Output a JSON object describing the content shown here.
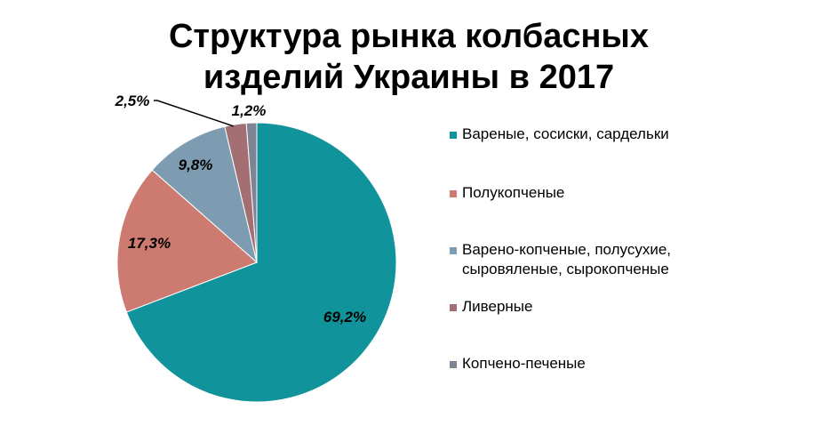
{
  "chart_data": {
    "type": "pie",
    "title": [
      "Структура рынка колбасных",
      "изделий Украины в 2017"
    ],
    "slices": [
      {
        "name": "Вареные, сосиски, сардельки",
        "value": 69.2,
        "label": "69,2%",
        "color": "#10939b"
      },
      {
        "name": "Полукопченые",
        "value": 17.3,
        "label": "17,3%",
        "color": "#cd7a70"
      },
      {
        "name": "Варено-копченые, полусухие, сыровяленые, сырокопченые",
        "value": 9.8,
        "label": "9,8%",
        "color": "#7e9cb1"
      },
      {
        "name": "Ливерные",
        "value": 2.5,
        "label": "2,5%",
        "color": "#a36f72"
      },
      {
        "name": "Копчено-печеные",
        "value": 1.2,
        "label": "1,2%",
        "color": "#7f8494"
      }
    ],
    "legend_position": "right"
  }
}
